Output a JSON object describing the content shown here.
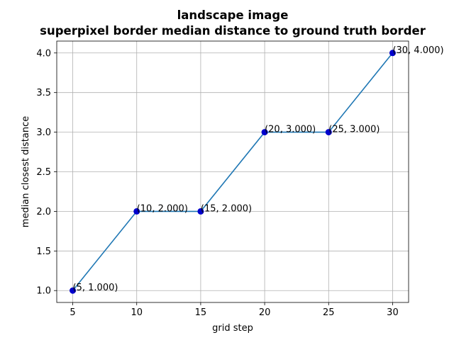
{
  "chart_data": {
    "type": "line",
    "title": "landscape image",
    "subtitle": "superpixel border median distance to ground truth border",
    "xlabel": "grid step",
    "ylabel": "median closest distance",
    "x": [
      5,
      10,
      15,
      20,
      25,
      30
    ],
    "y": [
      1.0,
      2.0,
      2.0,
      3.0,
      3.0,
      4.0
    ],
    "point_labels": [
      "(5, 1.000)",
      "(10, 2.000)",
      "(15, 2.000)",
      "(20, 3.000)",
      "(25, 3.000)",
      "(30, 4.000)"
    ],
    "xlim": [
      3.75,
      31.25
    ],
    "ylim": [
      0.85,
      4.15
    ],
    "xticks": [
      5,
      10,
      15,
      20,
      25,
      30
    ],
    "xtick_labels": [
      "5",
      "10",
      "15",
      "20",
      "25",
      "30"
    ],
    "yticks": [
      1.0,
      1.5,
      2.0,
      2.5,
      3.0,
      3.5,
      4.0
    ],
    "ytick_labels": [
      "1.0",
      "1.5",
      "2.0",
      "2.5",
      "3.0",
      "3.5",
      "4.0"
    ],
    "grid": true,
    "line_color": "#1f77b4",
    "marker_color": "#0000cd"
  }
}
